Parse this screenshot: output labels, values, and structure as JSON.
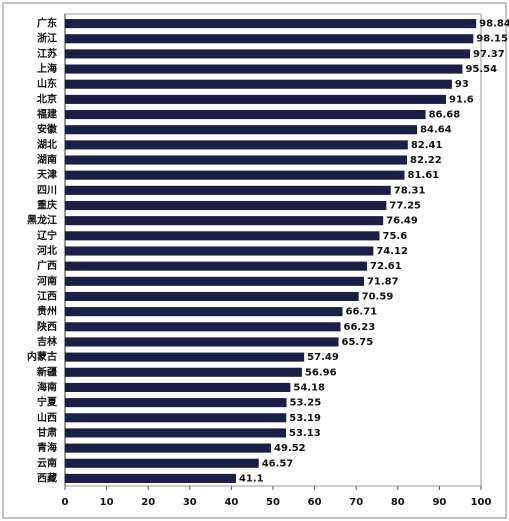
{
  "chart_data": {
    "type": "bar",
    "orientation": "horizontal",
    "categories": [
      "广东",
      "浙江",
      "江苏",
      "上海",
      "山东",
      "北京",
      "福建",
      "安徽",
      "湖北",
      "湖南",
      "天津",
      "四川",
      "重庆",
      "黑龙江",
      "辽宁",
      "河北",
      "广西",
      "河南",
      "江西",
      "贵州",
      "陕西",
      "吉林",
      "内蒙古",
      "新疆",
      "海南",
      "宁夏",
      "山西",
      "甘肃",
      "青海",
      "云南",
      "西藏"
    ],
    "values": [
      98.84,
      98.15,
      97.37,
      95.54,
      93,
      91.6,
      86.68,
      84.64,
      82.41,
      82.22,
      81.61,
      78.31,
      77.25,
      76.49,
      75.6,
      74.12,
      72.61,
      71.87,
      70.59,
      66.71,
      66.23,
      65.75,
      57.49,
      56.96,
      54.18,
      53.25,
      53.19,
      53.13,
      49.52,
      46.57,
      41.1
    ],
    "color": "#1b1f45",
    "xlim": [
      0,
      100
    ],
    "xticks": [
      0,
      10,
      20,
      30,
      40,
      50,
      60,
      70,
      80,
      90,
      100
    ],
    "grid": false
  }
}
